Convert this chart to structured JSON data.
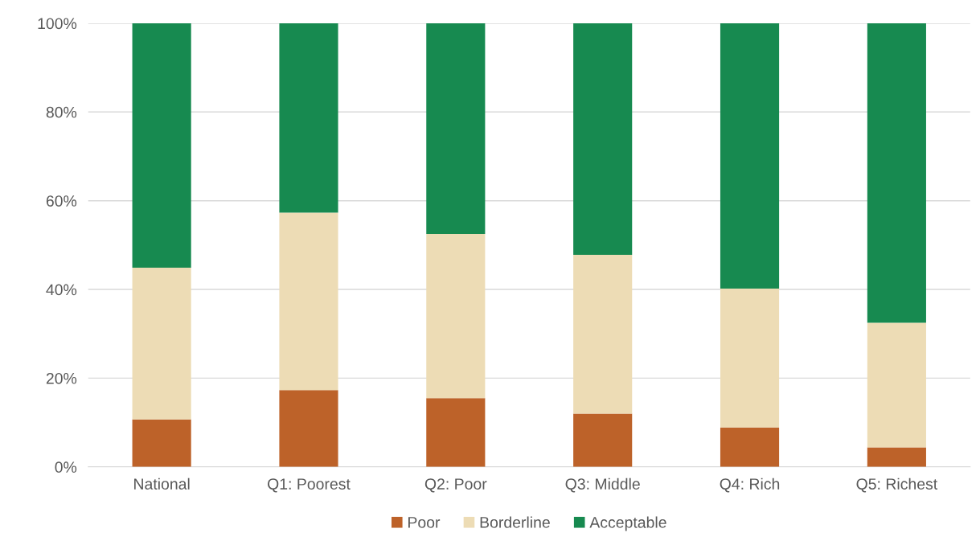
{
  "chart_data": {
    "type": "bar",
    "stacked": true,
    "categories": [
      "National",
      "Q1: Poorest",
      "Q2: Poor",
      "Q3: Middle",
      "Q4: Rich",
      "Q5: Richest"
    ],
    "series": [
      {
        "name": "Poor",
        "color": "#bd6229",
        "values": [
          10.7,
          17.3,
          15.5,
          12.0,
          8.9,
          4.4
        ]
      },
      {
        "name": "Borderline",
        "color": "#eddcb5",
        "values": [
          34.2,
          40.0,
          37.0,
          35.8,
          31.3,
          28.1
        ]
      },
      {
        "name": "Acceptable",
        "color": "#178a50",
        "values": [
          55.1,
          42.7,
          47.5,
          52.2,
          59.8,
          67.5
        ]
      }
    ],
    "ylim": [
      0,
      100
    ],
    "yticks": [
      {
        "value": 0,
        "label": "0%"
      },
      {
        "value": 20,
        "label": "20%"
      },
      {
        "value": 40,
        "label": "40%"
      },
      {
        "value": 60,
        "label": "60%"
      },
      {
        "value": 80,
        "label": "80%"
      },
      {
        "value": 100,
        "label": "100%"
      }
    ],
    "grid": "y",
    "legend": "bottom"
  }
}
